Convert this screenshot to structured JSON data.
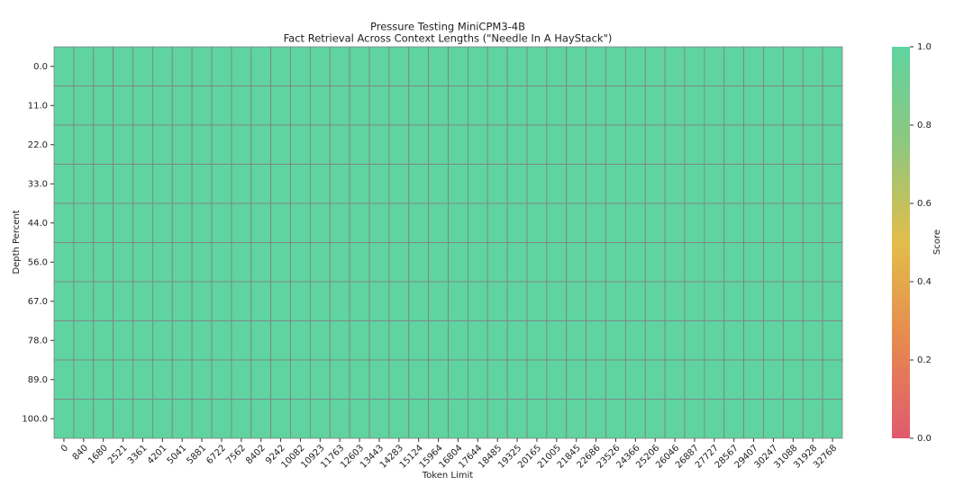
{
  "chart_data": {
    "type": "heatmap",
    "title": "Pressure Testing MiniCPM3-4B",
    "subtitle": "Fact Retrieval Across Context Lengths (\"Needle In A HayStack\")",
    "x_label": "Token Limit",
    "y_label": "Depth Percent",
    "colorbar_label": "Score",
    "categories": [
      "0",
      "840",
      "1680",
      "2521",
      "3361",
      "4201",
      "5041",
      "5881",
      "6722",
      "7562",
      "8402",
      "9242",
      "10082",
      "10923",
      "11763",
      "12603",
      "13443",
      "14283",
      "15124",
      "15964",
      "16804",
      "17644",
      "18485",
      "19325",
      "20165",
      "21005",
      "21845",
      "22686",
      "23526",
      "24366",
      "25206",
      "26046",
      "26887",
      "27727",
      "28567",
      "29407",
      "30247",
      "31088",
      "31928",
      "32768"
    ],
    "y_categories": [
      "0.0",
      "11.0",
      "22.0",
      "33.0",
      "44.0",
      "56.0",
      "67.0",
      "78.0",
      "89.0",
      "100.0"
    ],
    "z": [
      [
        1,
        1,
        1,
        1,
        1,
        1,
        1,
        1,
        1,
        1,
        1,
        1,
        1,
        1,
        1,
        1,
        1,
        1,
        1,
        1,
        1,
        1,
        1,
        1,
        1,
        1,
        1,
        1,
        1,
        1,
        1,
        1,
        1,
        1,
        1,
        1,
        1,
        1,
        1,
        1
      ],
      [
        1,
        1,
        1,
        1,
        1,
        1,
        1,
        1,
        1,
        1,
        1,
        1,
        1,
        1,
        1,
        1,
        1,
        1,
        1,
        1,
        1,
        1,
        1,
        1,
        1,
        1,
        1,
        1,
        1,
        1,
        1,
        1,
        1,
        1,
        1,
        1,
        1,
        1,
        1,
        1
      ],
      [
        1,
        1,
        1,
        1,
        1,
        1,
        1,
        1,
        1,
        1,
        1,
        1,
        1,
        1,
        1,
        1,
        1,
        1,
        1,
        1,
        1,
        1,
        1,
        1,
        1,
        1,
        1,
        1,
        1,
        1,
        1,
        1,
        1,
        1,
        1,
        1,
        1,
        1,
        1,
        1
      ],
      [
        1,
        1,
        1,
        1,
        1,
        1,
        1,
        1,
        1,
        1,
        1,
        1,
        1,
        1,
        1,
        1,
        1,
        1,
        1,
        1,
        1,
        1,
        1,
        1,
        1,
        1,
        1,
        1,
        1,
        1,
        1,
        1,
        1,
        1,
        1,
        1,
        1,
        1,
        1,
        1
      ],
      [
        1,
        1,
        1,
        1,
        1,
        1,
        1,
        1,
        1,
        1,
        1,
        1,
        1,
        1,
        1,
        1,
        1,
        1,
        1,
        1,
        1,
        1,
        1,
        1,
        1,
        1,
        1,
        1,
        1,
        1,
        1,
        1,
        1,
        1,
        1,
        1,
        1,
        1,
        1,
        1
      ],
      [
        1,
        1,
        1,
        1,
        1,
        1,
        1,
        1,
        1,
        1,
        1,
        1,
        1,
        1,
        1,
        1,
        1,
        1,
        1,
        1,
        1,
        1,
        1,
        1,
        1,
        1,
        1,
        1,
        1,
        1,
        1,
        1,
        1,
        1,
        1,
        1,
        1,
        1,
        1,
        1
      ],
      [
        1,
        1,
        1,
        1,
        1,
        1,
        1,
        1,
        1,
        1,
        1,
        1,
        1,
        1,
        1,
        1,
        1,
        1,
        1,
        1,
        1,
        1,
        1,
        1,
        1,
        1,
        1,
        1,
        1,
        1,
        1,
        1,
        1,
        1,
        1,
        1,
        1,
        1,
        1,
        1
      ],
      [
        1,
        1,
        1,
        1,
        1,
        1,
        1,
        1,
        1,
        1,
        1,
        1,
        1,
        1,
        1,
        1,
        1,
        1,
        1,
        1,
        1,
        1,
        1,
        1,
        1,
        1,
        1,
        1,
        1,
        1,
        1,
        1,
        1,
        1,
        1,
        1,
        1,
        1,
        1,
        1
      ],
      [
        1,
        1,
        1,
        1,
        1,
        1,
        1,
        1,
        1,
        1,
        1,
        1,
        1,
        1,
        1,
        1,
        1,
        1,
        1,
        1,
        1,
        1,
        1,
        1,
        1,
        1,
        1,
        1,
        1,
        1,
        1,
        1,
        1,
        1,
        1,
        1,
        1,
        1,
        1,
        1
      ],
      [
        1,
        1,
        1,
        1,
        1,
        1,
        1,
        1,
        1,
        1,
        1,
        1,
        1,
        1,
        1,
        1,
        1,
        1,
        1,
        1,
        1,
        1,
        1,
        1,
        1,
        1,
        1,
        1,
        1,
        1,
        1,
        1,
        1,
        1,
        1,
        1,
        1,
        1,
        1,
        1
      ]
    ],
    "colorscale": [
      "#e05a6e",
      "#e6894f",
      "#e3bd4a",
      "#8fc77e",
      "#5fd3a0"
    ],
    "zlim": [
      0,
      1
    ],
    "zticks": [
      {
        "value": 0,
        "label": "0.0"
      },
      {
        "value": 0.2,
        "label": "0.2"
      },
      {
        "value": 0.4,
        "label": "0.4"
      },
      {
        "value": 0.6,
        "label": "0.6"
      },
      {
        "value": 0.8,
        "label": "0.8"
      },
      {
        "value": 1,
        "label": "1.0"
      }
    ],
    "cell_border_color": "#808080"
  }
}
